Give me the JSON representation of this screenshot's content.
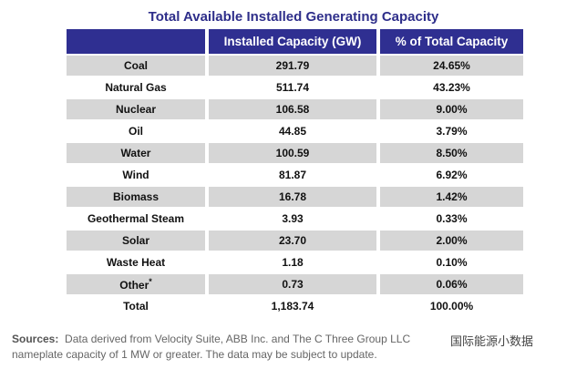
{
  "title": "Total Available Installed Generating Capacity",
  "headers": [
    "",
    "Installed Capacity (GW)",
    "% of Total Capacity"
  ],
  "rows": [
    {
      "type": "Coal",
      "gw": "291.79",
      "pct": "24.65%"
    },
    {
      "type": "Natural Gas",
      "gw": "511.74",
      "pct": "43.23%"
    },
    {
      "type": "Nuclear",
      "gw": "106.58",
      "pct": "9.00%"
    },
    {
      "type": "Oil",
      "gw": "44.85",
      "pct": "3.79%"
    },
    {
      "type": "Water",
      "gw": "100.59",
      "pct": "8.50%"
    },
    {
      "type": "Wind",
      "gw": "81.87",
      "pct": "6.92%"
    },
    {
      "type": "Biomass",
      "gw": "16.78",
      "pct": "1.42%"
    },
    {
      "type": "Geothermal Steam",
      "gw": "3.93",
      "pct": "0.33%"
    },
    {
      "type": "Solar",
      "gw": "23.70",
      "pct": "2.00%"
    },
    {
      "type": "Waste Heat",
      "gw": "1.18",
      "pct": "0.10%"
    },
    {
      "type": "Other",
      "sup": "*",
      "gw": "0.73",
      "pct": "0.06%"
    },
    {
      "type": "Total",
      "gw": "1,183.74",
      "pct": "100.00%"
    }
  ],
  "sources": {
    "label": "Sources:",
    "line1": "Data derived from Velocity Suite, ABB Inc. and The C Three Group LLC",
    "line2": "nameplate capacity of 1 MW or greater.  The data may be subject to update."
  },
  "watermark": "国际能源小数据",
  "colors": {
    "header": "#2f2f91",
    "title": "#2e2e8a",
    "stripe": "#d6d6d6"
  }
}
